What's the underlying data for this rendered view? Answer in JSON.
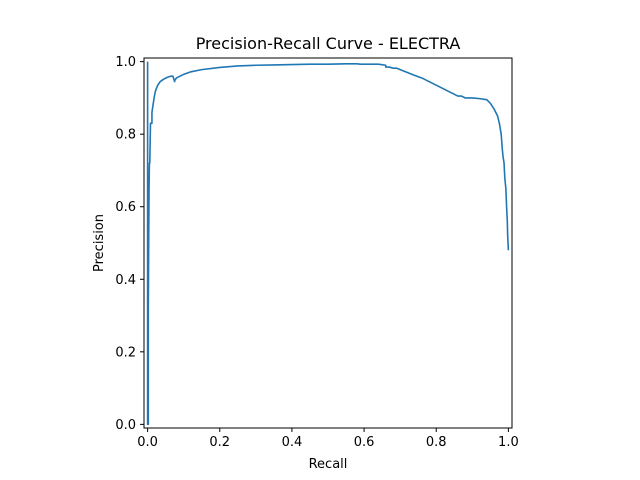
{
  "chart_data": {
    "type": "line",
    "title": "Precision-Recall Curve - ELECTRA",
    "xlabel": "Recall",
    "ylabel": "Precision",
    "xlim": [
      -0.01,
      1.01
    ],
    "ylim": [
      -0.01,
      1.01
    ],
    "xticks": [
      0.0,
      0.2,
      0.4,
      0.6,
      0.8,
      1.0
    ],
    "xtick_labels": [
      "0.0",
      "0.2",
      "0.4",
      "0.6",
      "0.8",
      "1.0"
    ],
    "yticks": [
      0.0,
      0.2,
      0.4,
      0.6,
      0.8,
      1.0
    ],
    "ytick_labels": [
      "0.0",
      "0.2",
      "0.4",
      "0.6",
      "0.8",
      "1.0"
    ],
    "grid": false,
    "line_color": "#1f77b4",
    "series": [
      {
        "x": [
          0.0,
          0.0,
          0.002,
          0.002,
          0.003,
          0.004,
          0.005,
          0.006,
          0.008,
          0.008,
          0.01,
          0.012,
          0.012,
          0.015,
          0.018,
          0.022,
          0.028,
          0.035,
          0.045,
          0.055,
          0.065,
          0.07,
          0.075,
          0.075,
          0.08,
          0.1,
          0.12,
          0.15,
          0.2,
          0.25,
          0.3,
          0.35,
          0.4,
          0.45,
          0.5,
          0.55,
          0.58,
          0.59,
          0.6,
          0.62,
          0.64,
          0.66,
          0.66,
          0.67,
          0.68,
          0.69,
          0.7,
          0.72,
          0.74,
          0.76,
          0.78,
          0.8,
          0.82,
          0.84,
          0.86,
          0.87,
          0.88,
          0.9,
          0.92,
          0.94,
          0.95,
          0.96,
          0.97,
          0.975,
          0.98,
          0.983,
          0.985,
          0.988,
          0.99,
          0.993,
          0.995,
          0.997,
          0.998,
          1.0
        ],
        "y": [
          1.0,
          0.0,
          0.0,
          0.33,
          0.5,
          0.65,
          0.72,
          0.72,
          0.83,
          0.83,
          0.83,
          0.83,
          0.86,
          0.88,
          0.9,
          0.92,
          0.935,
          0.945,
          0.952,
          0.957,
          0.96,
          0.96,
          0.945,
          0.948,
          0.955,
          0.965,
          0.972,
          0.978,
          0.984,
          0.988,
          0.99,
          0.991,
          0.992,
          0.993,
          0.993,
          0.994,
          0.994,
          0.993,
          0.993,
          0.993,
          0.993,
          0.99,
          0.985,
          0.985,
          0.982,
          0.982,
          0.978,
          0.97,
          0.962,
          0.955,
          0.945,
          0.935,
          0.925,
          0.915,
          0.905,
          0.905,
          0.9,
          0.9,
          0.898,
          0.895,
          0.885,
          0.87,
          0.85,
          0.83,
          0.8,
          0.76,
          0.74,
          0.72,
          0.68,
          0.65,
          0.6,
          0.56,
          0.52,
          0.48
        ]
      }
    ]
  }
}
